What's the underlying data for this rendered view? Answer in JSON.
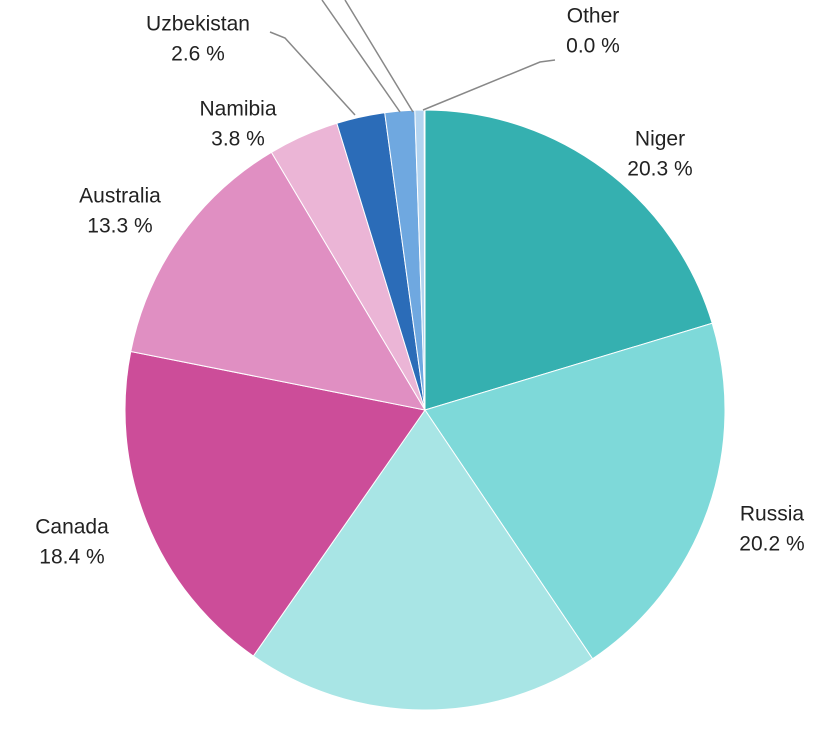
{
  "chart_data": {
    "type": "pie",
    "categories": [
      "Niger",
      "Russia",
      null,
      "Canada",
      "Australia",
      "Namibia",
      "Uzbekistan",
      null,
      null,
      "Other"
    ],
    "values": [
      20.3,
      20.2,
      19.1,
      18.4,
      13.3,
      3.8,
      2.6,
      1.6,
      0.5,
      0.04
    ],
    "value_labels": [
      "20.3 %",
      "20.2 %",
      null,
      "18.4 %",
      "13.3 %",
      "3.8 %",
      "2.6 %",
      null,
      null,
      "0.0 %"
    ],
    "colors": [
      "#35b0b0",
      "#7ed9d9",
      "#a8e5e5",
      "#cc4d99",
      "#e08fc2",
      "#ebb5d6",
      "#2b6cb8",
      "#6fa8e0",
      "#b3d4f0",
      "#e0504f"
    ]
  }
}
